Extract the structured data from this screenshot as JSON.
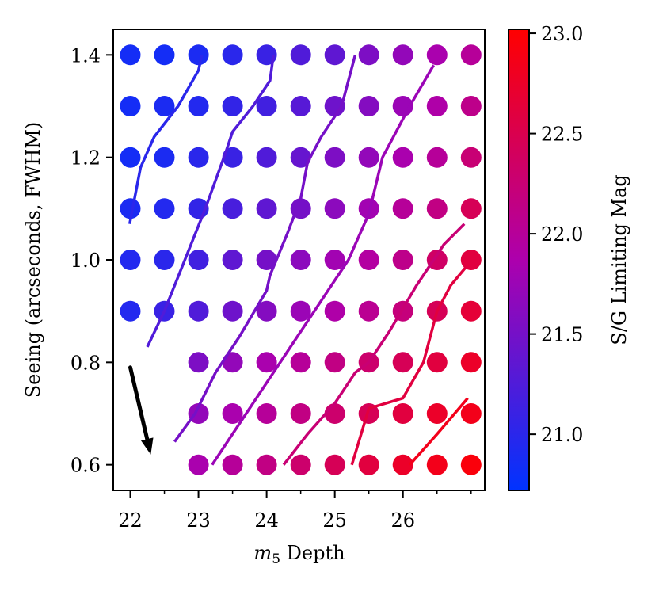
{
  "chart_data": {
    "type": "scatter",
    "xlabel": "m5 Depth",
    "xlabel_main": "m",
    "xlabel_sub": "5",
    "xlabel_rest": " Depth",
    "ylabel": "Seeing (arcseconds, FWHM)",
    "colorbar_label": "S/G Limiting Mag",
    "xlim": [
      21.75,
      27.2
    ],
    "ylim": [
      0.55,
      1.45
    ],
    "x_ticks": [
      22,
      23,
      24,
      25,
      26
    ],
    "x_tick_labels": [
      "22",
      "23",
      "24",
      "25",
      "26"
    ],
    "x_minor_ticks": [
      22.5,
      23.5,
      24.5,
      25.5,
      26.5,
      27.0
    ],
    "y_ticks": [
      0.6,
      0.8,
      1.0,
      1.2,
      1.4
    ],
    "y_tick_labels": [
      "0.6",
      "0.8",
      "1.0",
      "1.2",
      "1.4"
    ],
    "colorbar_range": [
      20.72,
      23.02
    ],
    "colorbar_ticks": [
      21.0,
      21.5,
      22.0,
      22.5,
      23.0
    ],
    "colorbar_tick_labels": [
      "21.0",
      "21.5",
      "22.0",
      "22.5",
      "23.0"
    ],
    "colormap_stops": [
      "#0033ff",
      "#ad00ad",
      "#ff0000"
    ],
    "depth_values": [
      22.0,
      22.5,
      23.0,
      23.5,
      24.0,
      24.5,
      25.0,
      25.5,
      26.0,
      26.5,
      27.0
    ],
    "seeing_values": [
      0.6,
      0.7,
      0.8,
      0.9,
      1.0,
      1.1,
      1.2,
      1.3,
      1.4
    ],
    "limiting_mag_grid": [
      [
        null,
        null,
        21.85,
        22.0,
        22.15,
        22.3,
        22.45,
        22.6,
        22.75,
        22.85,
        22.95
      ],
      [
        null,
        null,
        21.7,
        21.85,
        22.0,
        22.15,
        22.3,
        22.45,
        22.6,
        22.75,
        22.85
      ],
      [
        null,
        null,
        21.55,
        21.7,
        21.85,
        22.0,
        22.15,
        22.3,
        22.45,
        22.6,
        22.75
      ],
      [
        20.95,
        21.1,
        21.25,
        21.45,
        21.6,
        21.75,
        21.9,
        22.05,
        22.2,
        22.45,
        22.65
      ],
      [
        20.95,
        21.0,
        21.15,
        21.35,
        21.5,
        21.65,
        21.8,
        21.95,
        22.1,
        22.35,
        22.6
      ],
      [
        20.9,
        20.95,
        21.05,
        21.2,
        21.35,
        21.5,
        21.65,
        21.8,
        22.0,
        22.15,
        22.45
      ],
      [
        20.85,
        20.9,
        21.0,
        21.1,
        21.25,
        21.4,
        21.55,
        21.7,
        21.85,
        22.0,
        22.25
      ],
      [
        20.85,
        20.9,
        20.95,
        21.05,
        21.15,
        21.3,
        21.45,
        21.6,
        21.75,
        21.9,
        22.1
      ],
      [
        20.85,
        20.85,
        20.9,
        21.0,
        21.1,
        21.25,
        21.35,
        21.55,
        21.7,
        21.85,
        22.0
      ]
    ],
    "contours": [
      {
        "level": 21.0,
        "points": [
          [
            21.99,
            1.07
          ],
          [
            22.15,
            1.18
          ],
          [
            22.35,
            1.24
          ],
          [
            22.7,
            1.3
          ],
          [
            23.0,
            1.37
          ],
          [
            23.05,
            1.4
          ]
        ]
      },
      {
        "level": 21.25,
        "points": [
          [
            22.25,
            0.83
          ],
          [
            22.5,
            0.9
          ],
          [
            22.8,
            1.0
          ],
          [
            23.1,
            1.1
          ],
          [
            23.4,
            1.21
          ],
          [
            23.5,
            1.25
          ],
          [
            23.8,
            1.3
          ],
          [
            24.05,
            1.35
          ],
          [
            24.1,
            1.4
          ]
        ]
      },
      {
        "level": 21.5,
        "points": [
          [
            22.65,
            0.645
          ],
          [
            22.95,
            0.7
          ],
          [
            23.25,
            0.78
          ],
          [
            23.6,
            0.85
          ],
          [
            24.0,
            0.94
          ],
          [
            24.05,
            0.97
          ],
          [
            24.3,
            1.05
          ],
          [
            24.5,
            1.12
          ],
          [
            24.6,
            1.19
          ],
          [
            24.8,
            1.24
          ],
          [
            25.1,
            1.3
          ],
          [
            25.3,
            1.4
          ]
        ]
      },
      {
        "level": 21.75,
        "points": [
          [
            23.2,
            0.6
          ],
          [
            23.6,
            0.68
          ],
          [
            24.0,
            0.76
          ],
          [
            24.4,
            0.84
          ],
          [
            24.8,
            0.92
          ],
          [
            25.2,
            1.0
          ],
          [
            25.5,
            1.09
          ],
          [
            25.7,
            1.2
          ],
          [
            26.1,
            1.3
          ],
          [
            26.45,
            1.38
          ]
        ]
      },
      {
        "level": 22.25,
        "points": [
          [
            24.25,
            0.6
          ],
          [
            24.6,
            0.66
          ],
          [
            25.0,
            0.72
          ],
          [
            25.3,
            0.78
          ],
          [
            25.5,
            0.8
          ],
          [
            25.8,
            0.86
          ],
          [
            26.2,
            0.95
          ],
          [
            26.6,
            1.03
          ],
          [
            26.9,
            1.07
          ]
        ]
      },
      {
        "level": 22.6,
        "points": [
          [
            25.25,
            0.6
          ],
          [
            25.5,
            0.71
          ],
          [
            26.0,
            0.73
          ],
          [
            26.3,
            0.8
          ],
          [
            26.5,
            0.9
          ],
          [
            26.7,
            0.95
          ],
          [
            26.95,
            0.99
          ]
        ]
      },
      {
        "level": 22.85,
        "points": [
          [
            26.1,
            0.6
          ],
          [
            26.5,
            0.66
          ],
          [
            26.95,
            0.73
          ]
        ]
      }
    ],
    "arrow": {
      "from": [
        22.0,
        0.79
      ],
      "to": [
        22.3,
        0.62
      ]
    }
  }
}
